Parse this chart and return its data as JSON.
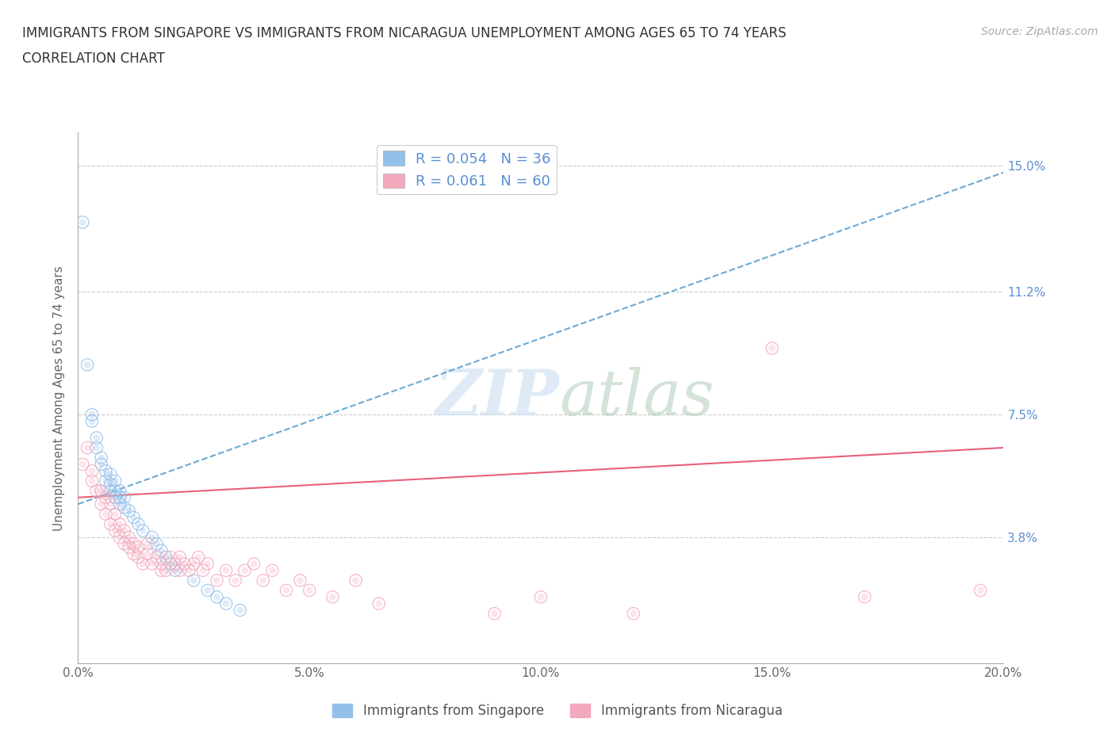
{
  "title_line1": "IMMIGRANTS FROM SINGAPORE VS IMMIGRANTS FROM NICARAGUA UNEMPLOYMENT AMONG AGES 65 TO 74 YEARS",
  "title_line2": "CORRELATION CHART",
  "source_text": "Source: ZipAtlas.com",
  "ylabel": "Unemployment Among Ages 65 to 74 years",
  "xlim": [
    0.0,
    0.2
  ],
  "ylim": [
    0.0,
    0.16
  ],
  "yticks": [
    0.0,
    0.038,
    0.075,
    0.112,
    0.15
  ],
  "ytick_labels_right": [
    "",
    "3.8%",
    "7.5%",
    "11.2%",
    "15.0%"
  ],
  "xticks": [
    0.0,
    0.05,
    0.1,
    0.15,
    0.2
  ],
  "xtick_labels": [
    "0.0%",
    "5.0%",
    "10.0%",
    "15.0%",
    "20.0%"
  ],
  "singapore_color": "#92c0ea",
  "nicaragua_color": "#f4a8bc",
  "singapore_R": 0.054,
  "singapore_N": 36,
  "nicaragua_R": 0.061,
  "nicaragua_N": 60,
  "singapore_label": "Immigrants from Singapore",
  "nicaragua_label": "Immigrants from Nicaragua",
  "trend_singapore_color": "#6aaad4",
  "trend_nicaragua_color": "#e8607a",
  "watermark_text": "ZIPatlas",
  "background_color": "#ffffff",
  "singapore_x": [
    0.001,
    0.002,
    0.003,
    0.003,
    0.004,
    0.004,
    0.005,
    0.005,
    0.006,
    0.006,
    0.007,
    0.007,
    0.007,
    0.008,
    0.008,
    0.008,
    0.009,
    0.009,
    0.009,
    0.01,
    0.01,
    0.011,
    0.012,
    0.013,
    0.014,
    0.016,
    0.017,
    0.018,
    0.019,
    0.02,
    0.021,
    0.025,
    0.028,
    0.03,
    0.032,
    0.035
  ],
  "singapore_y": [
    0.133,
    0.09,
    0.073,
    0.075,
    0.065,
    0.068,
    0.06,
    0.062,
    0.055,
    0.058,
    0.052,
    0.054,
    0.057,
    0.05,
    0.052,
    0.055,
    0.048,
    0.05,
    0.052,
    0.047,
    0.05,
    0.046,
    0.044,
    0.042,
    0.04,
    0.038,
    0.036,
    0.034,
    0.032,
    0.03,
    0.028,
    0.025,
    0.022,
    0.02,
    0.018,
    0.016
  ],
  "nicaragua_x": [
    0.001,
    0.002,
    0.003,
    0.003,
    0.004,
    0.005,
    0.005,
    0.006,
    0.006,
    0.007,
    0.007,
    0.008,
    0.008,
    0.009,
    0.009,
    0.01,
    0.01,
    0.011,
    0.011,
    0.012,
    0.012,
    0.013,
    0.013,
    0.014,
    0.015,
    0.015,
    0.016,
    0.017,
    0.018,
    0.018,
    0.019,
    0.02,
    0.021,
    0.022,
    0.022,
    0.023,
    0.024,
    0.025,
    0.026,
    0.027,
    0.028,
    0.03,
    0.032,
    0.034,
    0.036,
    0.038,
    0.04,
    0.042,
    0.045,
    0.048,
    0.05,
    0.055,
    0.06,
    0.065,
    0.09,
    0.1,
    0.12,
    0.15,
    0.17,
    0.195
  ],
  "nicaragua_y": [
    0.06,
    0.065,
    0.055,
    0.058,
    0.052,
    0.048,
    0.052,
    0.045,
    0.05,
    0.042,
    0.048,
    0.04,
    0.045,
    0.038,
    0.042,
    0.036,
    0.04,
    0.035,
    0.038,
    0.033,
    0.036,
    0.032,
    0.035,
    0.03,
    0.033,
    0.036,
    0.03,
    0.032,
    0.028,
    0.03,
    0.028,
    0.032,
    0.03,
    0.028,
    0.032,
    0.03,
    0.028,
    0.03,
    0.032,
    0.028,
    0.03,
    0.025,
    0.028,
    0.025,
    0.028,
    0.03,
    0.025,
    0.028,
    0.022,
    0.025,
    0.022,
    0.02,
    0.025,
    0.018,
    0.015,
    0.02,
    0.015,
    0.095,
    0.02,
    0.022
  ]
}
